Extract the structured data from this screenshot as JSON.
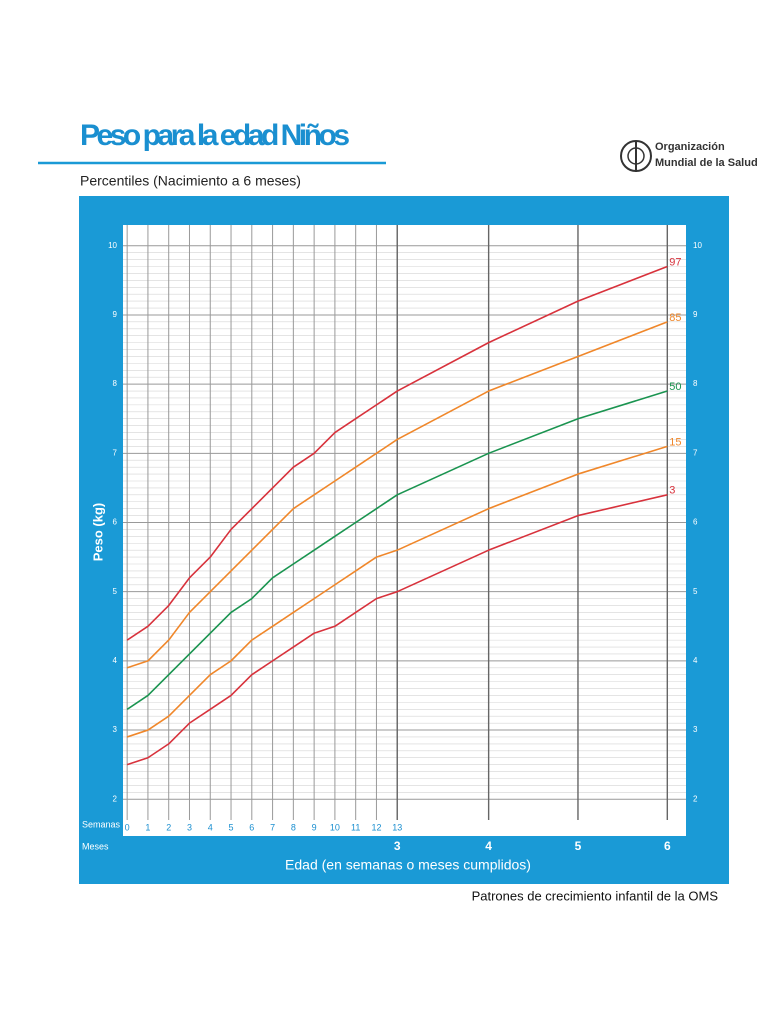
{
  "header": {
    "title": "Peso para la edad Niños",
    "subtitle": "Percentiles (Nacimiento a 6 meses)",
    "org": [
      "Organización",
      "Mundial de la Salud"
    ]
  },
  "chart_data": {
    "type": "line",
    "y_label": "Peso (kg)",
    "x_label": "Edad (en semanas o meses cumplidos)",
    "week_axis_label": "Semanas",
    "month_axis_label": "Meses",
    "x": [
      0,
      1,
      2,
      3,
      4,
      5,
      6,
      7,
      8,
      9,
      10,
      11,
      12,
      13,
      17.4,
      21.7,
      26
    ],
    "series": [
      {
        "name": "97",
        "color": "#d8323c",
        "values": [
          4.3,
          4.5,
          4.8,
          5.2,
          5.5,
          5.9,
          6.2,
          6.5,
          6.8,
          7.0,
          7.3,
          7.5,
          7.7,
          7.9,
          8.6,
          9.2,
          9.7
        ]
      },
      {
        "name": "85",
        "color": "#f0872a",
        "values": [
          3.9,
          4.0,
          4.3,
          4.7,
          5.0,
          5.3,
          5.6,
          5.9,
          6.2,
          6.4,
          6.6,
          6.8,
          7.0,
          7.2,
          7.9,
          8.4,
          8.9
        ]
      },
      {
        "name": "50",
        "color": "#1a9450",
        "values": [
          3.3,
          3.5,
          3.8,
          4.1,
          4.4,
          4.7,
          4.9,
          5.2,
          5.4,
          5.6,
          5.8,
          6.0,
          6.2,
          6.4,
          7.0,
          7.5,
          7.9
        ]
      },
      {
        "name": "15",
        "color": "#f0872a",
        "values": [
          2.9,
          3.0,
          3.2,
          3.5,
          3.8,
          4.0,
          4.3,
          4.5,
          4.7,
          4.9,
          5.1,
          5.3,
          5.5,
          5.6,
          6.2,
          6.7,
          7.1
        ]
      },
      {
        "name": "3",
        "color": "#d8323c",
        "values": [
          2.5,
          2.6,
          2.8,
          3.1,
          3.3,
          3.5,
          3.8,
          4.0,
          4.2,
          4.4,
          4.5,
          4.7,
          4.9,
          5.0,
          5.6,
          6.1,
          6.4
        ]
      }
    ],
    "xlim": [
      -0.2,
      26.9
    ],
    "xticks": [
      0,
      1,
      2,
      3,
      4,
      5,
      6,
      7,
      8,
      9,
      10,
      11,
      12,
      13
    ],
    "month_ticks": [
      {
        "value": 13,
        "label": "3"
      },
      {
        "value": 17.4,
        "label": "4"
      },
      {
        "value": 21.7,
        "label": "5"
      },
      {
        "value": 26,
        "label": "6"
      }
    ],
    "ylim": [
      1.7,
      10.3
    ],
    "yticks": [
      2,
      3,
      4,
      5,
      6,
      7,
      8,
      9,
      10
    ],
    "grid": true
  },
  "footer": "Patrones de crecimiento infantil de la OMS"
}
